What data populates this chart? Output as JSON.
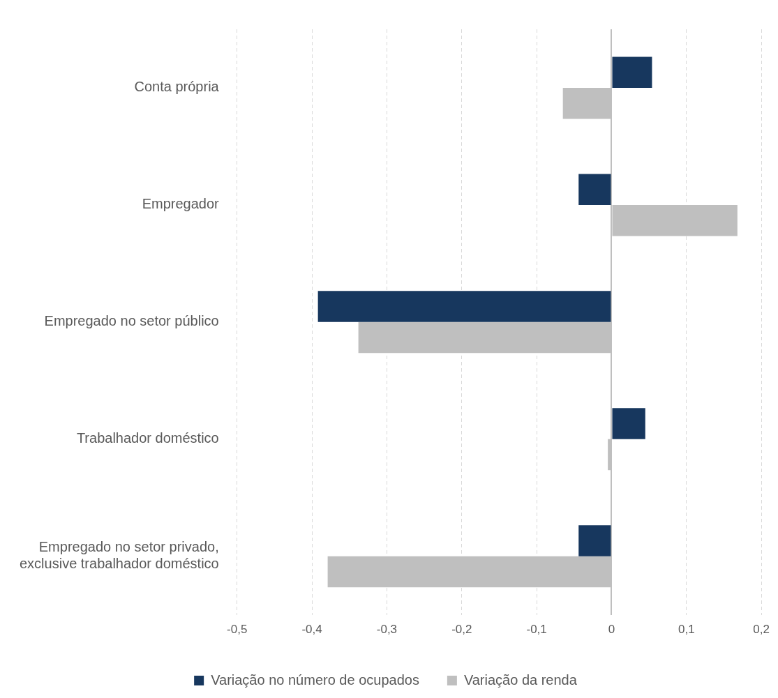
{
  "chart_data": {
    "type": "bar",
    "orientation": "horizontal",
    "categories": [
      "Conta própria",
      "Empregador",
      "Empregado no setor público",
      "Trabalhador doméstico",
      "Empregado no setor privado,\nexclusive trabalhador doméstico"
    ],
    "series": [
      {
        "name": "Variação no número de ocupados",
        "color": "#17375e",
        "values": [
          0.054,
          -0.044,
          -0.392,
          0.045,
          -0.044
        ]
      },
      {
        "name": "Variação da renda",
        "color": "#bfbfbf",
        "values": [
          -0.065,
          0.168,
          -0.338,
          -0.005,
          -0.379
        ]
      }
    ],
    "xlim": [
      -0.5,
      0.2
    ],
    "xticks": [
      {
        "value": -0.5,
        "label": "-0,5"
      },
      {
        "value": -0.4,
        "label": "-0,4"
      },
      {
        "value": -0.3,
        "label": "-0,3"
      },
      {
        "value": -0.2,
        "label": "-0,2"
      },
      {
        "value": -0.1,
        "label": "-0,1"
      },
      {
        "value": 0,
        "label": "0"
      },
      {
        "value": 0.1,
        "label": "0,1"
      },
      {
        "value": 0.2,
        "label": "0,2"
      }
    ],
    "grid": "x",
    "legend": "bottom"
  }
}
